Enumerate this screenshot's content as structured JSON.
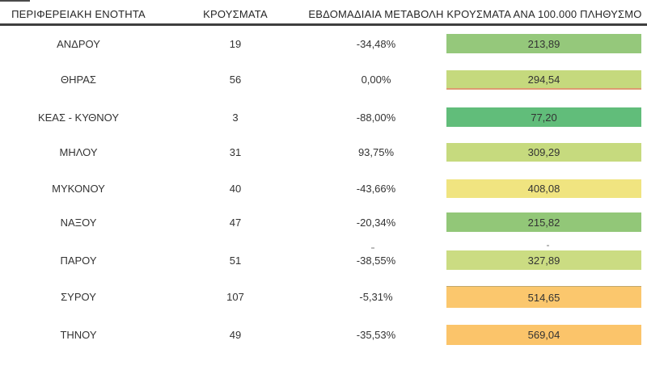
{
  "chart_data": {
    "type": "table",
    "title": "",
    "columns": [
      "ΠΕΡΙΦΕΡΕΙΑΚΗ ΕΝΟΤΗΤΑ",
      "ΚΡΟΥΣΜΑΤΑ",
      "ΕΒΔΟΜΑΔΙΑΙΑ ΜΕΤΑΒΟΛΗ",
      "ΚΡΟΥΣΜΑΤΑ ΑΝΑ 100.000 ΠΛΗΘΥΣΜΟ"
    ],
    "rows": [
      [
        "ΑΝΔΡΟΥ",
        19,
        "-34,48%",
        "213,89"
      ],
      [
        "ΘΗΡΑΣ",
        56,
        "0,00%",
        "294,54"
      ],
      [
        "ΚΕΑΣ - ΚΥΘΝΟΥ",
        3,
        "-88,00%",
        "77,20"
      ],
      [
        "ΜΗΛΟΥ",
        31,
        "93,75%",
        "309,29"
      ],
      [
        "ΜΥΚΟΝΟΥ",
        40,
        "-43,66%",
        "408,08"
      ],
      [
        "ΝΑΞΟΥ",
        47,
        "-20,34%",
        "215,82"
      ],
      [
        "ΠΑΡΟΥ",
        51,
        "-38,55%",
        "327,89"
      ],
      [
        "ΣΥΡΟΥ",
        107,
        "-5,31%",
        "514,65"
      ],
      [
        "ΤΗΝΟΥ",
        49,
        "-35,53%",
        "569,04"
      ]
    ],
    "notes": "last column cells use a green-yellow-orange heat color scale"
  },
  "table": {
    "headers": {
      "region": "ΠΕΡΙΦΕΡΕΙΑΚΗ ΕΝΟΤΗΤΑ",
      "cases": "ΚΡΟΥΣΜΑΤΑ",
      "weekly_change": "ΕΒΔΟΜΑΔΙΑΙΑ ΜΕΤΑΒΟΛΗ",
      "per_100k": "ΚΡΟΥΣΜΑΤΑ ΑΝΑ 100.000 ΠΛΗΘΥΣΜΟ"
    },
    "rows": [
      {
        "region": "ΑΝΔΡΟΥ",
        "cases": "19",
        "weekly_change": "-34,48%",
        "per_100k": "213,89",
        "cell_color": "#95C87B"
      },
      {
        "region": "ΘΗΡΑΣ",
        "cases": "56",
        "weekly_change": "0,00%",
        "per_100k": "294,54",
        "cell_color": "#C5D97D",
        "bottom_border": "#DD9B71"
      },
      {
        "region": "ΚΕΑΣ - ΚΥΘΝΟΥ",
        "cases": "3",
        "weekly_change": "-88,00%",
        "per_100k": "77,20",
        "cell_color": "#61BD7A"
      },
      {
        "region": "ΜΗΛΟΥ",
        "cases": "31",
        "weekly_change": "93,75%",
        "per_100k": "309,29",
        "cell_color": "#C6DA7E"
      },
      {
        "region": "ΜΥΚΟΝΟΥ",
        "cases": "40",
        "weekly_change": "-43,66%",
        "per_100k": "408,08",
        "cell_color": "#F0E480"
      },
      {
        "region": "ΝΑΞΟΥ",
        "cases": "47",
        "weekly_change": "-20,34%",
        "per_100k": "215,82",
        "cell_color": "#92C778"
      },
      {
        "region": "ΠΑΡΟΥ",
        "cases": "51",
        "weekly_change": "-38,55%",
        "per_100k": "327,89",
        "cell_color": "#CBDC82"
      },
      {
        "region": "ΣΥΡΟΥ",
        "cases": "107",
        "weekly_change": "-5,31%",
        "per_100k": "514,65",
        "cell_color": "#FBC76D",
        "top_border": "rgba(146,141,106,0.55)"
      },
      {
        "region": "ΤΗΝΟΥ",
        "cases": "49",
        "weekly_change": "-35,53%",
        "per_100k": "569,04",
        "cell_color": "#FBC46A"
      }
    ]
  }
}
